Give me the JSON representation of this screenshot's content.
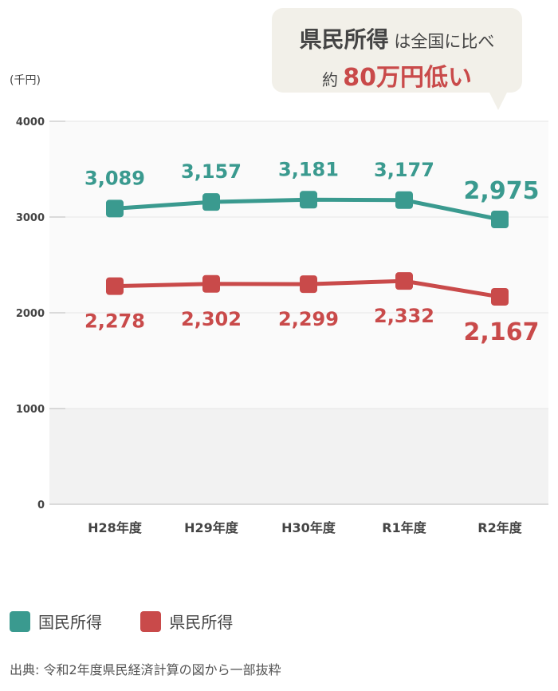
{
  "unit_label": "(千円)",
  "callout": {
    "pref": "県民所得",
    "rest1": " は全国に比べ",
    "pre2": "約 ",
    "highlight": "80万円低い"
  },
  "legend": [
    {
      "label": "国民所得",
      "color": "#3a9a8f"
    },
    {
      "label": "県民所得",
      "color": "#c94a4a"
    }
  ],
  "source": "出典: 令和2年度県民経済計算の図から一部抜粋",
  "chart_data": {
    "type": "line",
    "categories": [
      "H28年度",
      "H29年度",
      "H30年度",
      "R1年度",
      "R2年度"
    ],
    "y_ticks": [
      "0",
      "1000",
      "2000",
      "3000",
      "4000"
    ],
    "ylim": [
      0,
      4000
    ],
    "ylabel": "(千円)",
    "series": [
      {
        "name": "国民所得",
        "color": "#3a9a8f",
        "values": [
          3089,
          3157,
          3181,
          3177,
          2975
        ],
        "labels": [
          "3,089",
          "3,157",
          "3,181",
          "3,177",
          "2,975"
        ]
      },
      {
        "name": "県民所得",
        "color": "#c94a4a",
        "values": [
          2278,
          2302,
          2299,
          2332,
          2167
        ],
        "labels": [
          "2,278",
          "2,302",
          "2,299",
          "2,332",
          "2,167"
        ]
      }
    ]
  }
}
